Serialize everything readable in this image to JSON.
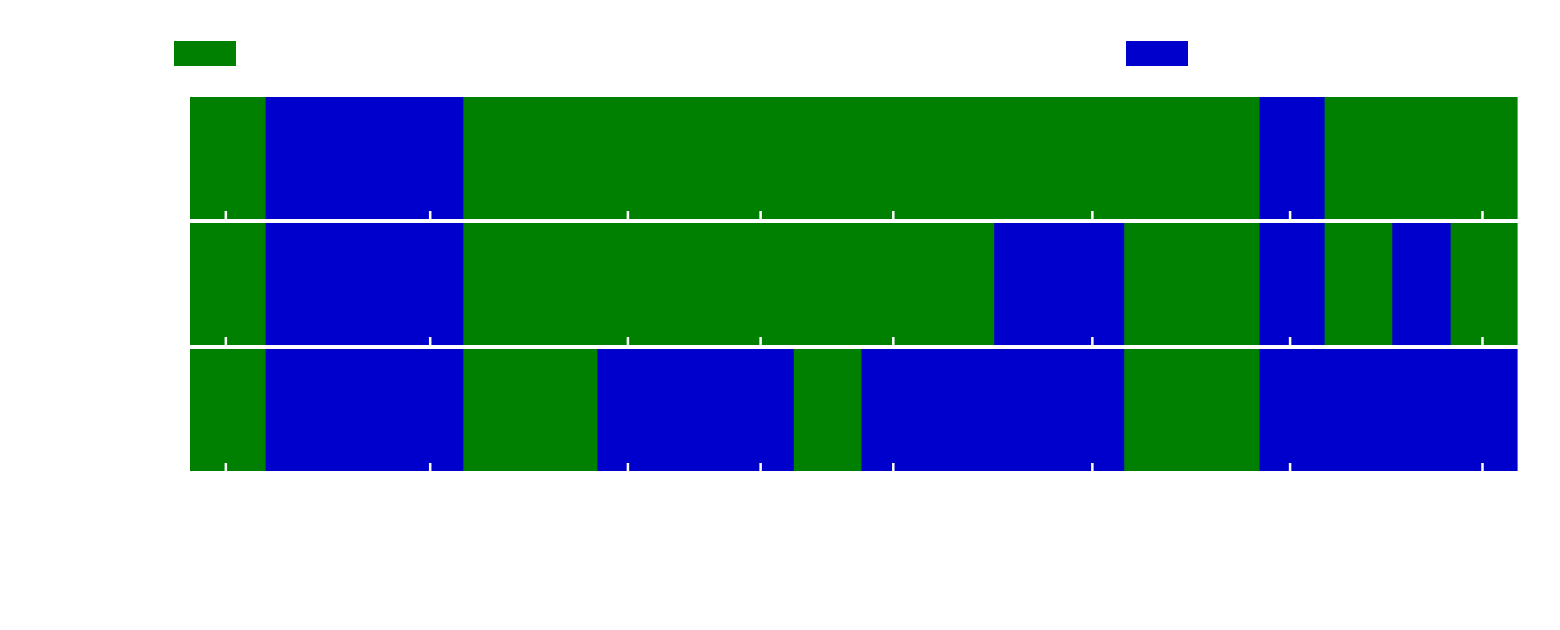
{
  "chart_data": {
    "type": "bar",
    "orientation": "horizontal-segments",
    "title": "",
    "xlabel": "",
    "ylabel": "",
    "grid": false,
    "legend_placement": "top",
    "colors": {
      "A": "#008000",
      "B": "#0000cc",
      "tick": "#ffffff",
      "separator": "#ffffff",
      "background": "#ffffff"
    },
    "legend": [
      {
        "key": "A",
        "label": ""
      },
      {
        "key": "B",
        "label": ""
      }
    ],
    "xlim": [
      0,
      100
    ],
    "x_ticks": [
      2.7,
      18.1,
      33.0,
      43.0,
      53.0,
      68.0,
      82.9,
      97.4
    ],
    "rows": [
      {
        "label": "",
        "segments": [
          {
            "start": 0.0,
            "end": 5.7,
            "key": "A"
          },
          {
            "start": 5.7,
            "end": 20.6,
            "key": "B"
          },
          {
            "start": 20.6,
            "end": 80.6,
            "key": "A"
          },
          {
            "start": 80.6,
            "end": 85.5,
            "key": "B"
          },
          {
            "start": 85.5,
            "end": 100.0,
            "key": "A"
          }
        ]
      },
      {
        "label": "",
        "segments": [
          {
            "start": 0.0,
            "end": 5.7,
            "key": "A"
          },
          {
            "start": 5.7,
            "end": 20.6,
            "key": "B"
          },
          {
            "start": 20.6,
            "end": 60.6,
            "key": "A"
          },
          {
            "start": 60.6,
            "end": 70.4,
            "key": "B"
          },
          {
            "start": 70.4,
            "end": 80.6,
            "key": "A"
          },
          {
            "start": 80.6,
            "end": 85.5,
            "key": "B"
          },
          {
            "start": 85.5,
            "end": 90.6,
            "key": "A"
          },
          {
            "start": 90.6,
            "end": 95.0,
            "key": "B"
          },
          {
            "start": 95.0,
            "end": 100.0,
            "key": "A"
          }
        ]
      },
      {
        "label": "",
        "segments": [
          {
            "start": 0.0,
            "end": 5.7,
            "key": "B"
          },
          {
            "start": 0.0,
            "end": 5.7,
            "key": "A"
          },
          {
            "start": 5.7,
            "end": 20.6,
            "key": "B"
          },
          {
            "start": 20.6,
            "end": 30.7,
            "key": "A"
          },
          {
            "start": 30.7,
            "end": 45.5,
            "key": "B"
          },
          {
            "start": 45.5,
            "end": 50.6,
            "key": "A"
          },
          {
            "start": 50.6,
            "end": 70.4,
            "key": "B"
          },
          {
            "start": 70.4,
            "end": 80.6,
            "key": "A"
          },
          {
            "start": 80.6,
            "end": 100.0,
            "key": "B"
          }
        ]
      }
    ]
  }
}
